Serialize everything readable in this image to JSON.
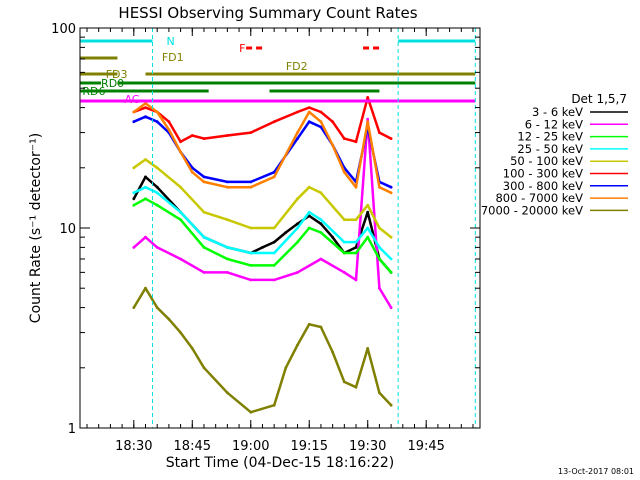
{
  "chart_data": {
    "type": "line",
    "title": "HESSI Observing Summary Count Rates",
    "xlabel": "Start Time (04-Dec-15 18:16:22)",
    "ylabel": "Count Rate (s⁻¹ detector⁻¹)",
    "yscale": "log",
    "ylim": [
      1,
      100
    ],
    "y_ticks": [
      {
        "value": 1,
        "label": "1"
      },
      {
        "value": 10,
        "label": "10"
      },
      {
        "value": 100,
        "label": "100"
      }
    ],
    "xlim_minutes": [
      18.27,
      19.98
    ],
    "x_ticks": [
      {
        "value": 18.5,
        "label": "18:30"
      },
      {
        "value": 18.75,
        "label": "18:45"
      },
      {
        "value": 19.0,
        "label": "19:00"
      },
      {
        "value": 19.25,
        "label": "19:15"
      },
      {
        "value": 19.5,
        "label": "19:30"
      },
      {
        "value": 19.75,
        "label": "19:45"
      }
    ],
    "legend": {
      "title": "Det 1,5,7",
      "placement": "right"
    },
    "series": [
      {
        "name": "3 - 6 keV",
        "color": "#000000",
        "x": [
          18.5,
          18.55,
          18.6,
          18.7,
          18.8,
          18.9,
          19.0,
          19.05,
          19.1,
          19.15,
          19.2,
          19.25,
          19.3,
          19.35,
          19.4,
          19.45,
          19.5,
          19.55,
          19.6
        ],
        "y": [
          14,
          18,
          16,
          12,
          9,
          8,
          7.5,
          8,
          8.5,
          9.5,
          10.5,
          11.5,
          10.5,
          9,
          7.5,
          8,
          12,
          7,
          6
        ]
      },
      {
        "name": "6 - 12 keV",
        "color": "#ff00ff",
        "x": [
          18.5,
          18.55,
          18.6,
          18.7,
          18.8,
          18.9,
          19.0,
          19.1,
          19.2,
          19.3,
          19.4,
          19.45,
          19.5,
          19.55,
          19.6
        ],
        "y": [
          8,
          9,
          8,
          7,
          6,
          6,
          5.5,
          5.5,
          6,
          7,
          6,
          5.5,
          35,
          5,
          4
        ]
      },
      {
        "name": "12 - 25 keV",
        "color": "#00ff00",
        "x": [
          18.5,
          18.55,
          18.6,
          18.7,
          18.8,
          18.9,
          19.0,
          19.1,
          19.2,
          19.25,
          19.3,
          19.4,
          19.45,
          19.5,
          19.55,
          19.6
        ],
        "y": [
          13,
          14,
          13,
          11,
          8,
          7,
          6.5,
          6.5,
          8.5,
          10,
          9.5,
          7.5,
          7.5,
          9,
          7,
          6
        ]
      },
      {
        "name": "25 - 50 keV",
        "color": "#00ffff",
        "x": [
          18.5,
          18.55,
          18.6,
          18.7,
          18.8,
          18.9,
          19.0,
          19.1,
          19.2,
          19.25,
          19.3,
          19.4,
          19.45,
          19.5,
          19.55,
          19.6
        ],
        "y": [
          15,
          16,
          15,
          12,
          9,
          8,
          7.5,
          7.5,
          10,
          12,
          11,
          8.5,
          8.5,
          10,
          8,
          7
        ]
      },
      {
        "name": "50 - 100 keV",
        "color": "#c8c800",
        "x": [
          18.5,
          18.55,
          18.6,
          18.7,
          18.8,
          18.9,
          19.0,
          19.1,
          19.2,
          19.25,
          19.3,
          19.4,
          19.45,
          19.5,
          19.55,
          19.6
        ],
        "y": [
          20,
          22,
          20,
          16,
          12,
          11,
          10,
          10,
          14,
          16,
          15,
          11,
          11,
          13,
          10,
          9
        ]
      },
      {
        "name": "100 - 300 keV",
        "color": "#ff0000",
        "x": [
          18.5,
          18.55,
          18.6,
          18.65,
          18.7,
          18.75,
          18.8,
          18.9,
          19.0,
          19.1,
          19.2,
          19.25,
          19.3,
          19.35,
          19.4,
          19.45,
          19.5,
          19.55,
          19.6
        ],
        "y": [
          38,
          40,
          38,
          34,
          27,
          29,
          28,
          29,
          30,
          34,
          38,
          40,
          38,
          34,
          28,
          27,
          45,
          30,
          28
        ]
      },
      {
        "name": "300 - 800 keV",
        "color": "#0000ff",
        "x": [
          18.5,
          18.55,
          18.6,
          18.65,
          18.7,
          18.75,
          18.8,
          18.9,
          19.0,
          19.1,
          19.2,
          19.25,
          19.3,
          19.35,
          19.4,
          19.45,
          19.5,
          19.55,
          19.6
        ],
        "y": [
          34,
          36,
          34,
          30,
          24,
          20,
          18,
          17,
          17,
          19,
          28,
          34,
          32,
          26,
          20,
          17,
          32,
          17,
          16
        ]
      },
      {
        "name": "800 - 7000 keV",
        "color": "#ff8000",
        "x": [
          18.5,
          18.55,
          18.6,
          18.65,
          18.7,
          18.75,
          18.8,
          18.9,
          19.0,
          19.1,
          19.2,
          19.25,
          19.3,
          19.35,
          19.4,
          19.45,
          19.5,
          19.55,
          19.6
        ],
        "y": [
          38,
          42,
          38,
          31,
          24,
          19,
          17,
          16,
          16,
          18,
          30,
          38,
          34,
          26,
          19,
          16,
          34,
          16,
          15
        ]
      },
      {
        "name": "7000 - 20000 keV",
        "color": "#808000",
        "x": [
          18.5,
          18.55,
          18.6,
          18.65,
          18.7,
          18.75,
          18.8,
          18.9,
          19.0,
          19.1,
          19.15,
          19.2,
          19.25,
          19.3,
          19.35,
          19.4,
          19.45,
          19.5,
          19.55,
          19.6
        ],
        "y": [
          4,
          5,
          4,
          3.5,
          3,
          2.5,
          2,
          1.5,
          1.2,
          1.3,
          2,
          2.6,
          3.3,
          3.2,
          2.4,
          1.7,
          1.6,
          2.5,
          1.5,
          1.3
        ]
      }
    ],
    "flags": [
      {
        "label": "N",
        "color": "#00e0e0"
      },
      {
        "label": "F",
        "color": "#ff0000"
      },
      {
        "label": "FD1",
        "color": "#808000"
      },
      {
        "label": "FD2",
        "color": "#808000"
      },
      {
        "label": "FD3",
        "color": "#808000"
      },
      {
        "label": "RD0",
        "color": "#008000"
      },
      {
        "label": "RD6",
        "color": "#008000"
      },
      {
        "label": "AC",
        "color": "#ff00ff"
      }
    ],
    "grid": false
  },
  "footer": {
    "date_stamp": "13-Oct-2017 08:01"
  }
}
